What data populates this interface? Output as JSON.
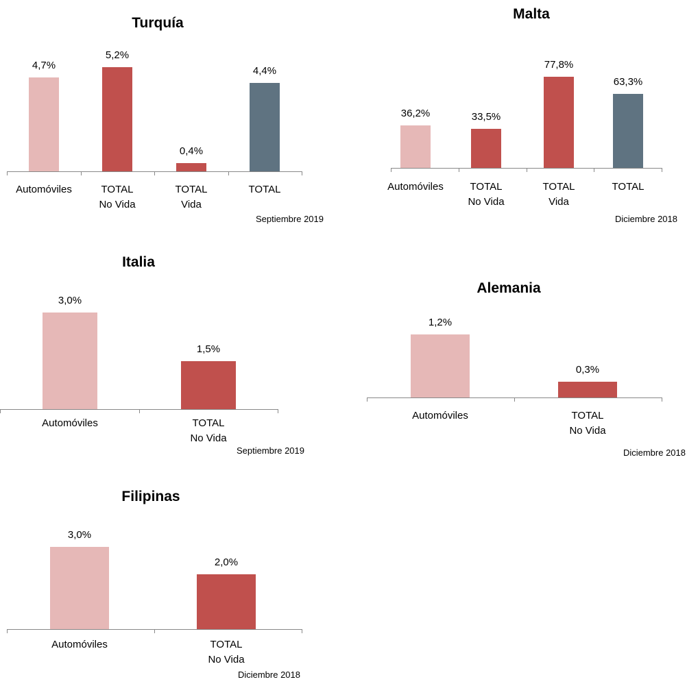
{
  "chart_data": [
    {
      "type": "bar",
      "title": "Turquía",
      "categories": [
        "Automóviles",
        "TOTAL\nNo Vida",
        "TOTAL\nVida",
        "TOTAL"
      ],
      "values": [
        4.7,
        5.2,
        0.4,
        4.4
      ],
      "value_labels": [
        "4,7%",
        "5,2%",
        "0,4%",
        "4,4%"
      ],
      "colors": [
        "#e6b8b7",
        "#c0504d",
        "#c0504d",
        "#5f7381"
      ],
      "note": "Septiembre 2019"
    },
    {
      "type": "bar",
      "title": "Malta",
      "categories": [
        "Automóviles",
        "TOTAL\nNo Vida",
        "TOTAL\nVida",
        "TOTAL"
      ],
      "values": [
        36.2,
        33.5,
        77.8,
        63.3
      ],
      "value_labels": [
        "36,2%",
        "33,5%",
        "77,8%",
        "63,3%"
      ],
      "colors": [
        "#e6b8b7",
        "#c0504d",
        "#c0504d",
        "#5f7381"
      ],
      "note": "Diciembre 2018"
    },
    {
      "type": "bar",
      "title": "Italia",
      "categories": [
        "Automóviles",
        "TOTAL\nNo Vida"
      ],
      "values": [
        3.0,
        1.5
      ],
      "value_labels": [
        "3,0%",
        "1,5%"
      ],
      "colors": [
        "#e6b8b7",
        "#c0504d"
      ],
      "note": "Septiembre 2019"
    },
    {
      "type": "bar",
      "title": "Alemania",
      "categories": [
        "Automóviles",
        "TOTAL\nNo Vida"
      ],
      "values": [
        1.2,
        0.3
      ],
      "value_labels": [
        "1,2%",
        "0,3%"
      ],
      "colors": [
        "#e6b8b7",
        "#c0504d"
      ],
      "note": "Diciembre 2018"
    },
    {
      "type": "bar",
      "title": "Filipinas",
      "categories": [
        "Automóviles",
        "TOTAL\nNo Vida"
      ],
      "values": [
        3.0,
        2.0
      ],
      "value_labels": [
        "3,0%",
        "2,0%"
      ],
      "colors": [
        "#e6b8b7",
        "#c0504d"
      ],
      "note": "Diciembre 2018"
    }
  ]
}
